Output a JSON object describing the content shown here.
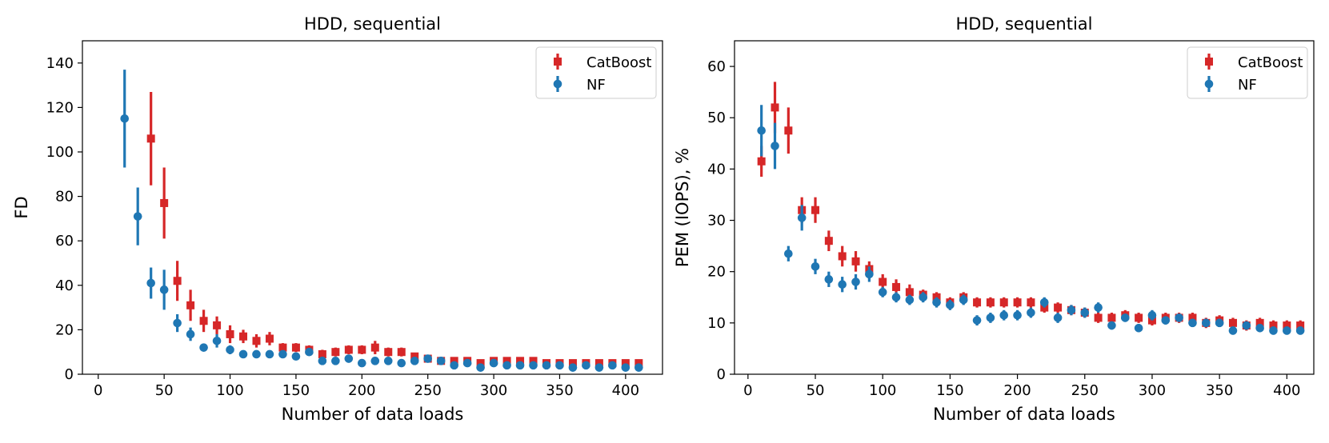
{
  "colors": {
    "catboost": "#d62728",
    "nf": "#1f77b4"
  },
  "chart_data": [
    {
      "type": "scatter",
      "title": "HDD, sequential",
      "xlabel": "Number of data loads",
      "ylabel": "FD",
      "xlim": [
        -12,
        428
      ],
      "ylim": [
        0,
        150
      ],
      "xticks": [
        0,
        50,
        100,
        150,
        200,
        250,
        300,
        350,
        400
      ],
      "yticks": [
        0,
        20,
        40,
        60,
        80,
        100,
        120,
        140
      ],
      "legend": "top-right",
      "series": [
        {
          "name": "CatBoost",
          "marker": "square",
          "x": [
            40,
            50,
            60,
            70,
            80,
            90,
            100,
            110,
            120,
            130,
            140,
            150,
            160,
            170,
            180,
            190,
            200,
            210,
            220,
            230,
            240,
            250,
            260,
            270,
            280,
            290,
            300,
            310,
            320,
            330,
            340,
            350,
            360,
            370,
            380,
            390,
            400,
            410
          ],
          "y": [
            106,
            77,
            42,
            31,
            24,
            22,
            18,
            17,
            15,
            16,
            12,
            12,
            11,
            9,
            10,
            11,
            11,
            12,
            10,
            10,
            8,
            7,
            6,
            6,
            6,
            5,
            6,
            6,
            6,
            6,
            5,
            5,
            5,
            5,
            5,
            5,
            5,
            5
          ],
          "err": [
            21,
            16,
            9,
            7,
            5,
            4,
            4,
            3,
            3,
            3,
            2,
            2,
            2,
            2,
            2,
            2,
            2,
            3,
            2,
            2,
            1,
            1,
            1,
            1,
            1,
            1,
            1,
            1,
            1,
            1,
            1,
            1,
            1,
            1,
            1,
            1,
            1,
            1
          ]
        },
        {
          "name": "NF",
          "marker": "circle",
          "x": [
            20,
            30,
            40,
            50,
            60,
            70,
            80,
            90,
            100,
            110,
            120,
            130,
            140,
            150,
            160,
            170,
            180,
            190,
            200,
            210,
            220,
            230,
            240,
            250,
            260,
            270,
            280,
            290,
            300,
            310,
            320,
            330,
            340,
            350,
            360,
            370,
            380,
            390,
            400,
            410
          ],
          "y": [
            115,
            71,
            41,
            38,
            23,
            18,
            12,
            15,
            11,
            9,
            9,
            9,
            9,
            8,
            10,
            6,
            6,
            7,
            5,
            6,
            6,
            5,
            6,
            7,
            6,
            4,
            5,
            3,
            5,
            4,
            4,
            4,
            4,
            4,
            3,
            4,
            3,
            4,
            3,
            3
          ],
          "err": [
            22,
            13,
            7,
            9,
            4,
            3,
            1,
            3,
            2,
            1,
            1,
            1,
            1,
            1,
            1,
            1,
            1,
            1,
            1,
            1,
            1,
            1,
            1,
            1,
            1,
            1,
            1,
            1,
            1,
            1,
            1,
            1,
            1,
            1,
            1,
            1,
            1,
            1,
            1,
            1
          ]
        }
      ]
    },
    {
      "type": "scatter",
      "title": "HDD, sequential",
      "xlabel": "Number of data loads",
      "ylabel": "PEM (IOPS), %",
      "xlim": [
        -10,
        420
      ],
      "ylim": [
        0,
        65
      ],
      "xticks": [
        0,
        50,
        100,
        150,
        200,
        250,
        300,
        350,
        400
      ],
      "yticks": [
        0,
        10,
        20,
        30,
        40,
        50,
        60
      ],
      "legend": "top-right",
      "series": [
        {
          "name": "CatBoost",
          "marker": "square",
          "x": [
            10,
            20,
            30,
            40,
            50,
            60,
            70,
            80,
            90,
            100,
            110,
            120,
            130,
            140,
            150,
            160,
            170,
            180,
            190,
            200,
            210,
            220,
            230,
            240,
            250,
            260,
            270,
            280,
            290,
            300,
            310,
            320,
            330,
            340,
            350,
            360,
            370,
            380,
            390,
            400,
            410
          ],
          "y": [
            41.5,
            52,
            47.5,
            32,
            32,
            26,
            23,
            22,
            20.5,
            18,
            17,
            16,
            15.5,
            15,
            14,
            15,
            14,
            14,
            14,
            14,
            14,
            13,
            13,
            12.5,
            12,
            11,
            11,
            11.5,
            11,
            10.5,
            11,
            11,
            11,
            10,
            10.5,
            10,
            9.5,
            10,
            9.5,
            9.5,
            9.5
          ],
          "err": [
            3,
            5,
            4.5,
            2.5,
            2.5,
            2,
            2,
            2,
            1.5,
            1.5,
            1.5,
            1.5,
            1,
            1,
            1,
            1,
            1,
            1,
            1,
            1,
            1,
            1,
            1,
            1,
            1,
            1,
            1,
            1,
            1,
            1,
            1,
            1,
            1,
            1,
            1,
            1,
            1,
            1,
            1,
            1,
            1
          ]
        },
        {
          "name": "NF",
          "marker": "circle",
          "x": [
            10,
            20,
            30,
            40,
            50,
            60,
            70,
            80,
            90,
            100,
            110,
            120,
            130,
            140,
            150,
            160,
            170,
            180,
            190,
            200,
            210,
            220,
            230,
            240,
            250,
            260,
            270,
            280,
            290,
            300,
            310,
            320,
            330,
            340,
            350,
            360,
            370,
            380,
            390,
            400,
            410
          ],
          "y": [
            47.5,
            44.5,
            23.5,
            30.5,
            21,
            18.5,
            17.5,
            18,
            19.5,
            16,
            15,
            14.5,
            15,
            14,
            13.5,
            14.5,
            10.5,
            11,
            11.5,
            11.5,
            12,
            14,
            11,
            12.5,
            12,
            13,
            9.5,
            11,
            9,
            11.5,
            10.5,
            11,
            10,
            10,
            10,
            8.5,
            9.5,
            9,
            8.5,
            8.5,
            8.5
          ],
          "err": [
            5,
            4.5,
            1.5,
            2.5,
            1.5,
            1.5,
            1.5,
            1.5,
            1.5,
            1,
            1,
            1,
            1,
            1,
            1,
            1,
            1,
            1,
            1,
            1,
            1,
            1,
            1,
            1,
            1,
            1,
            0.8,
            0.8,
            0.8,
            1,
            0.8,
            0.8,
            0.8,
            0.8,
            0.8,
            0.8,
            0.8,
            0.8,
            0.8,
            0.8,
            0.8
          ]
        }
      ]
    }
  ]
}
